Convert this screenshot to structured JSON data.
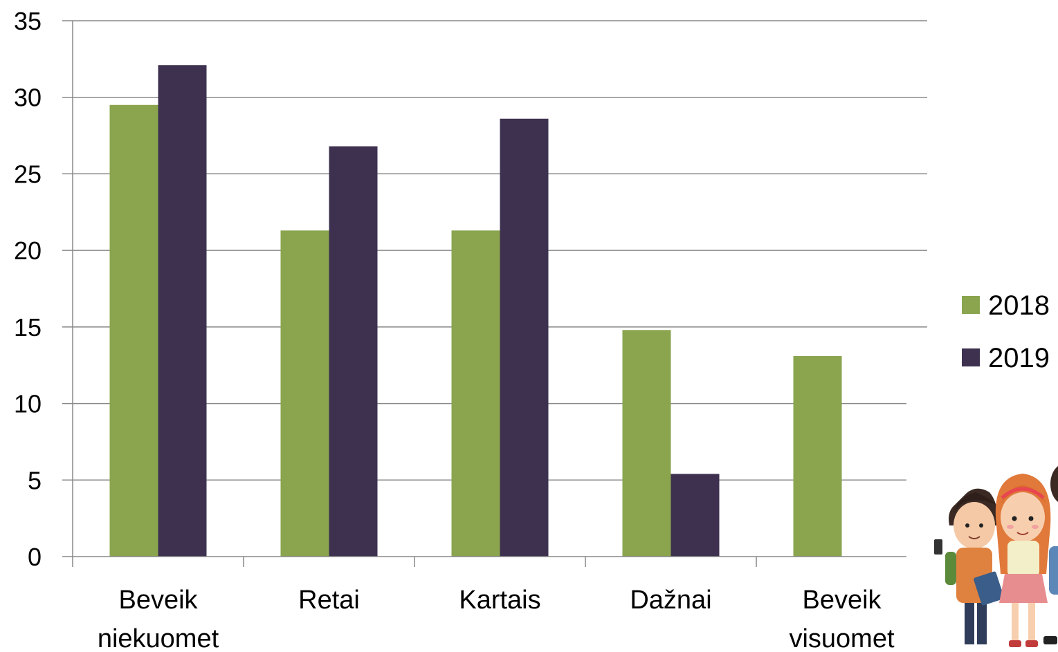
{
  "chart_data": {
    "type": "bar",
    "title": "",
    "xlabel": "",
    "ylabel": "",
    "categories": [
      [
        "Beveik",
        "niekuomet"
      ],
      [
        "Retai"
      ],
      [
        "Kartais"
      ],
      [
        "Dažnai"
      ],
      [
        "Beveik",
        "visuomet"
      ]
    ],
    "series": [
      {
        "name": "2018",
        "color": "#8aa54e",
        "values": [
          29.5,
          21.3,
          21.3,
          14.8,
          13.1
        ]
      },
      {
        "name": "2019",
        "color": "#3e3150",
        "values": [
          32.1,
          26.8,
          28.6,
          5.4,
          null
        ]
      }
    ],
    "ylim": [
      0,
      35
    ],
    "yticks": [
      0,
      5,
      10,
      15,
      20,
      25,
      30,
      35
    ],
    "grid": true,
    "legend": "right"
  },
  "decorations": {
    "illustration": "cartoon-kids-with-backpacks"
  }
}
